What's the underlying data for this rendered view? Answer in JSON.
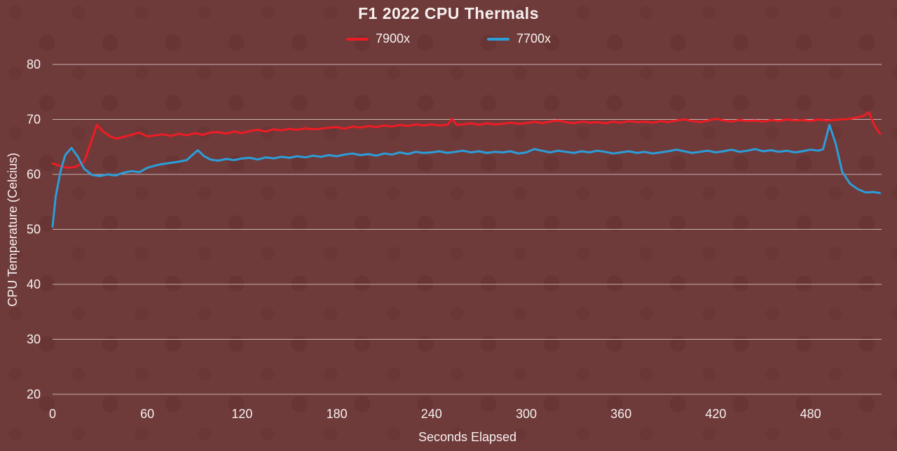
{
  "chart_data": {
    "type": "line",
    "title": "F1 2022 CPU Thermals",
    "xlabel": "Seconds Elapsed",
    "ylabel": "CPU Temperature (Celcius)",
    "xlim": [
      0,
      525
    ],
    "ylim": [
      20,
      80
    ],
    "x_ticks": [
      0,
      60,
      120,
      180,
      240,
      300,
      360,
      420,
      480
    ],
    "y_ticks": [
      20,
      30,
      40,
      50,
      60,
      70,
      80
    ],
    "grid": "horizontal",
    "legend_position": "top",
    "background_color": "#6f3a3a",
    "text_color": "#f6f1ef",
    "grid_color": "#e3dcda",
    "series": [
      {
        "name": "7900x",
        "color": "#ed1c24",
        "x": [
          0,
          5,
          10,
          15,
          20,
          24,
          28,
          32,
          36,
          40,
          45,
          50,
          55,
          60,
          65,
          70,
          75,
          80,
          85,
          90,
          95,
          100,
          105,
          110,
          115,
          120,
          125,
          130,
          135,
          140,
          145,
          150,
          155,
          160,
          165,
          170,
          175,
          180,
          185,
          190,
          195,
          200,
          205,
          210,
          215,
          220,
          225,
          230,
          235,
          240,
          245,
          250,
          253,
          256,
          260,
          265,
          270,
          275,
          280,
          285,
          290,
          295,
          300,
          305,
          310,
          315,
          320,
          325,
          330,
          335,
          340,
          345,
          350,
          355,
          360,
          365,
          370,
          375,
          380,
          385,
          390,
          395,
          400,
          405,
          410,
          415,
          420,
          425,
          430,
          435,
          440,
          445,
          450,
          455,
          460,
          465,
          470,
          475,
          480,
          485,
          490,
          495,
          500,
          505,
          510,
          514,
          517,
          520,
          522,
          524
        ],
        "values": [
          62,
          61.5,
          61.2,
          61.4,
          62.3,
          65.5,
          69,
          67.8,
          67,
          66.5,
          66.8,
          67.2,
          67.6,
          66.9,
          67.1,
          67.3,
          67,
          67.4,
          67.1,
          67.5,
          67.2,
          67.6,
          67.7,
          67.4,
          67.8,
          67.5,
          67.9,
          68.1,
          67.8,
          68.2,
          68,
          68.3,
          68.1,
          68.4,
          68.2,
          68.3,
          68.5,
          68.6,
          68.3,
          68.7,
          68.5,
          68.8,
          68.6,
          68.9,
          68.7,
          69,
          68.8,
          69.1,
          68.9,
          69.1,
          68.9,
          69,
          70.1,
          69,
          69.1,
          69.3,
          69,
          69.3,
          69.1,
          69.2,
          69.4,
          69.2,
          69.3,
          69.6,
          69.3,
          69.6,
          69.8,
          69.5,
          69.3,
          69.6,
          69.4,
          69.5,
          69.3,
          69.6,
          69.4,
          69.7,
          69.5,
          69.6,
          69.4,
          69.7,
          69.5,
          69.8,
          70,
          69.7,
          69.5,
          69.8,
          70.1,
          69.8,
          69.6,
          69.9,
          69.7,
          69.8,
          69.6,
          69.9,
          69.7,
          70,
          69.8,
          69.9,
          69.7,
          70,
          69.8,
          69.9,
          70,
          70.1,
          70.4,
          70.7,
          71.3,
          69.2,
          68.2,
          67.4
        ]
      },
      {
        "name": "7700x",
        "color": "#2b9ed9",
        "x": [
          0,
          2,
          5,
          8,
          12,
          16,
          20,
          25,
          30,
          35,
          40,
          45,
          50,
          55,
          60,
          65,
          70,
          75,
          80,
          85,
          88,
          92,
          96,
          100,
          105,
          110,
          115,
          120,
          125,
          130,
          135,
          140,
          145,
          150,
          155,
          160,
          165,
          170,
          175,
          180,
          185,
          190,
          195,
          200,
          205,
          210,
          215,
          220,
          225,
          230,
          235,
          240,
          245,
          250,
          255,
          260,
          265,
          270,
          275,
          280,
          285,
          290,
          295,
          300,
          305,
          310,
          315,
          320,
          325,
          330,
          335,
          340,
          345,
          350,
          355,
          360,
          365,
          370,
          375,
          380,
          385,
          390,
          395,
          400,
          405,
          410,
          415,
          420,
          425,
          430,
          435,
          440,
          445,
          450,
          455,
          460,
          465,
          470,
          475,
          480,
          485,
          488,
          492,
          496,
          500,
          505,
          510,
          515,
          520,
          524
        ],
        "values": [
          50.5,
          56,
          60.5,
          63.5,
          64.8,
          63.2,
          61,
          59.9,
          59.7,
          60,
          59.8,
          60.3,
          60.6,
          60.4,
          61.2,
          61.6,
          61.9,
          62.1,
          62.3,
          62.6,
          63.4,
          64.4,
          63.3,
          62.7,
          62.5,
          62.8,
          62.6,
          62.9,
          63,
          62.7,
          63.1,
          62.9,
          63.2,
          63,
          63.3,
          63.1,
          63.4,
          63.2,
          63.5,
          63.3,
          63.6,
          63.8,
          63.5,
          63.7,
          63.4,
          63.8,
          63.6,
          64,
          63.7,
          64.1,
          63.9,
          64,
          64.2,
          63.9,
          64.1,
          64.3,
          64,
          64.2,
          63.9,
          64.1,
          64,
          64.2,
          63.8,
          64,
          64.6,
          64.3,
          64,
          64.3,
          64.1,
          63.9,
          64.2,
          64,
          64.3,
          64.1,
          63.8,
          64,
          64.2,
          63.9,
          64.1,
          63.8,
          64,
          64.2,
          64.5,
          64.2,
          63.9,
          64.1,
          64.3,
          64,
          64.2,
          64.5,
          64.1,
          64.3,
          64.6,
          64.2,
          64.4,
          64.1,
          64.3,
          64,
          64.2,
          64.5,
          64.3,
          64.6,
          69,
          65.5,
          60.5,
          58.3,
          57.3,
          56.7,
          56.8,
          56.6
        ]
      }
    ]
  }
}
